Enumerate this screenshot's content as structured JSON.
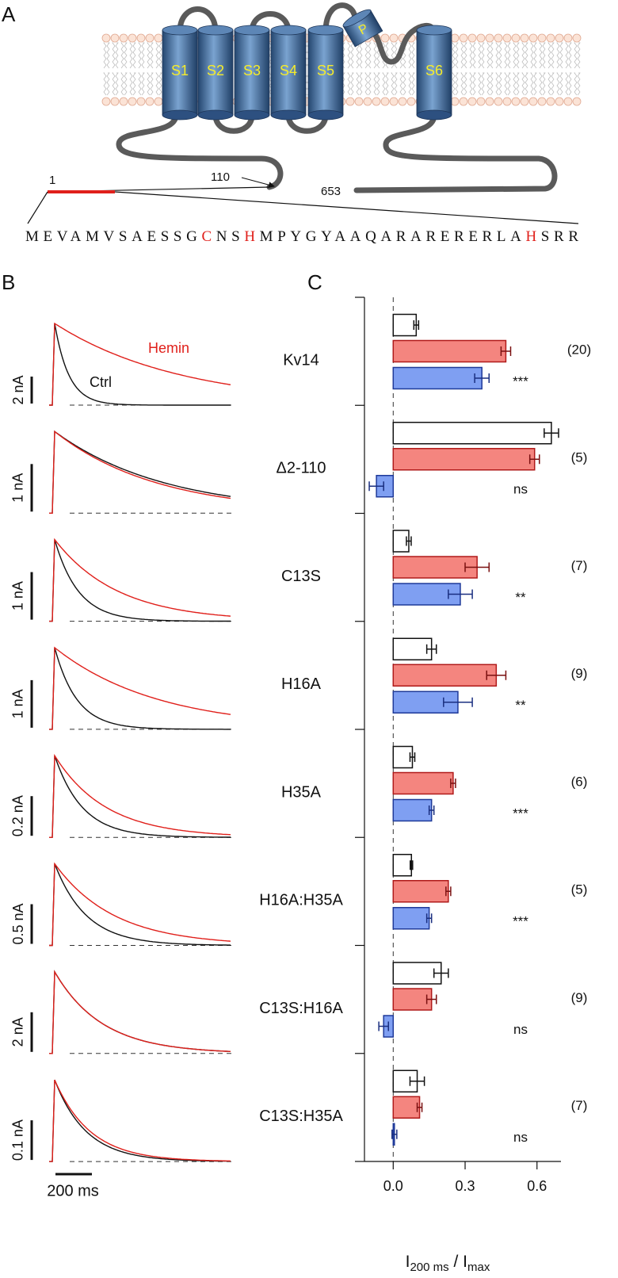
{
  "panels": {
    "a": "A",
    "b": "B",
    "c": "C"
  },
  "diagram": {
    "segments": [
      "S1",
      "S2",
      "S3",
      "S4",
      "S5",
      "P",
      "S6"
    ],
    "residue_labels": [
      "1",
      "110",
      "653"
    ],
    "sequence": [
      {
        "text": "MEVAMVSAESSG",
        "highlight": false
      },
      {
        "text": "C",
        "highlight": true
      },
      {
        "text": "NS",
        "highlight": false
      },
      {
        "text": "H",
        "highlight": true
      },
      {
        "text": "MPYGYAAQARARERERLA",
        "highlight": false
      },
      {
        "text": "H",
        "highlight": true
      },
      {
        "text": "SRR",
        "highlight": false
      }
    ],
    "highlight_color": "#e0201b"
  },
  "traces": {
    "hemin_label": "Hemin",
    "ctrl_label": "Ctrl",
    "hemin_color": "#e0201b",
    "ctrl_color": "#111111",
    "scale_bars": [
      "2 nA",
      "1 nA",
      "1 nA",
      "1 nA",
      "0.2 nA",
      "0.5 nA",
      "2 nA",
      "0.1 nA"
    ],
    "time_bar": "200 ms"
  },
  "chart_data": {
    "type": "bar",
    "orientation": "horizontal",
    "categories": [
      "Kv14",
      "Δ2-110",
      "C13S",
      "H16A",
      "H35A",
      "H16A:H35A",
      "C13S:H16A",
      "C13S:H35A"
    ],
    "series": [
      {
        "color": "#ffffff",
        "edge_color": "#111111",
        "error_color": "#111111",
        "values": [
          0.096,
          0.66,
          0.065,
          0.16,
          0.08,
          0.076,
          0.2,
          0.1
        ],
        "errors": [
          0.01,
          0.03,
          0.01,
          0.02,
          0.01,
          0.005,
          0.03,
          0.03
        ]
      },
      {
        "color": "#f4857f",
        "edge_color": "#b01a1a",
        "error_color": "#7a1010",
        "values": [
          0.47,
          0.59,
          0.35,
          0.43,
          0.25,
          0.23,
          0.16,
          0.11
        ],
        "errors": [
          0.02,
          0.02,
          0.05,
          0.04,
          0.01,
          0.01,
          0.02,
          0.01
        ]
      },
      {
        "color": "#7f9ff2",
        "edge_color": "#1f3a99",
        "error_color": "#1a2f80",
        "values": [
          0.37,
          -0.07,
          0.28,
          0.27,
          0.16,
          0.15,
          -0.04,
          0.005
        ],
        "errors": [
          0.03,
          0.03,
          0.05,
          0.06,
          0.01,
          0.01,
          0.02,
          0.01
        ]
      }
    ],
    "xlim": [
      -0.12,
      0.7
    ],
    "xticks": [
      {
        "value": 0,
        "label": "0.0"
      },
      0.3,
      0.6
    ],
    "x_label": [
      "I",
      "200 ms",
      " / I",
      "max"
    ],
    "n_labels": [
      "(20)",
      "(5)",
      "(7)",
      "(9)",
      "(6)",
      "(5)",
      "(9)",
      "(7)"
    ],
    "significance": [
      "***",
      "ns",
      "**",
      "**",
      "***",
      "***",
      "ns",
      "ns"
    ]
  }
}
